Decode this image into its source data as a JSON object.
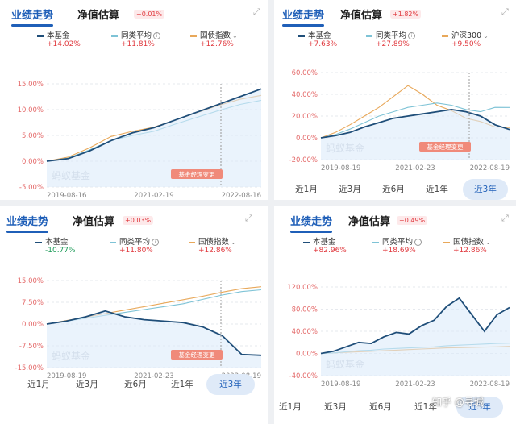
{
  "panels": [
    {
      "tabs": {
        "perf": "业绩走势",
        "nav": "净值估算",
        "badge": "+0.01%"
      },
      "legend": [
        {
          "name": "本基金",
          "value": "+14.02%",
          "color": "#1f4e79"
        },
        {
          "name": "同类平均",
          "value": "+11.81%",
          "color": "#7ec3d6",
          "info": true
        },
        {
          "name": "国债指数",
          "value": "+12.76%",
          "color": "#e8a85a",
          "chevron": true
        }
      ],
      "yticks": [
        "15.00%",
        "10.00%",
        "5.00%",
        "0.00%",
        "-5.00%"
      ],
      "xticks": [
        "2019-08-16",
        "2021-02-19",
        "2022-08-16"
      ],
      "watermark": "蚂蚁基金",
      "manager_tag": "基金经理变更",
      "chart_data": {
        "type": "line",
        "x_range": [
          "2019-08-16",
          "2022-08-16"
        ],
        "ylim": [
          -5,
          15
        ],
        "series": [
          {
            "name": "本基金",
            "values": [
              0,
              0.5,
              2,
              4,
              5.5,
              6.5,
              8,
              9.5,
              11,
              12.5,
              14.02
            ]
          },
          {
            "name": "同类平均",
            "values": [
              0,
              0.6,
              2.2,
              4,
              5,
              5.8,
              7.2,
              8.5,
              9.8,
              11,
              11.81
            ]
          },
          {
            "name": "国债指数",
            "values": [
              0,
              0.8,
              2.6,
              4.8,
              5.8,
              6.6,
              8,
              9.4,
              10.8,
              12,
              12.76
            ]
          }
        ]
      }
    },
    {
      "tabs": {
        "perf": "业绩走势",
        "nav": "净值估算",
        "badge": "+1.82%"
      },
      "legend": [
        {
          "name": "本基金",
          "value": "+7.63%",
          "color": "#1f4e79"
        },
        {
          "name": "同类平均",
          "value": "+27.89%",
          "color": "#7ec3d6",
          "info": true
        },
        {
          "name": "沪深300",
          "value": "+9.50%",
          "color": "#e8a85a",
          "chevron": true
        }
      ],
      "yticks": [
        "60.00%",
        "40.00%",
        "20.00%",
        "0.00%",
        "-20.00%"
      ],
      "xticks": [
        "2019-08-19",
        "2021-02-23",
        "2022-08-19"
      ],
      "watermark": "蚂蚁基金",
      "manager_tag": "基金经理变更",
      "periods": [
        "近1月",
        "近3月",
        "近6月",
        "近1年",
        "近3年"
      ],
      "active_period": "近3年",
      "chart_data": {
        "type": "line",
        "x_range": [
          "2019-08-19",
          "2022-08-19"
        ],
        "ylim": [
          -20,
          60
        ],
        "series": [
          {
            "name": "本基金",
            "values": [
              0,
              2,
              5,
              10,
              14,
              18,
              20,
              22,
              24,
              26,
              24,
              20,
              12,
              7.63
            ]
          },
          {
            "name": "同类平均",
            "values": [
              0,
              3,
              8,
              14,
              20,
              24,
              28,
              30,
              32,
              30,
              26,
              24,
              28,
              27.89
            ]
          },
          {
            "name": "沪深300",
            "values": [
              0,
              5,
              12,
              20,
              28,
              38,
              48,
              40,
              30,
              25,
              18,
              15,
              10,
              9.5
            ]
          }
        ]
      }
    },
    {
      "tabs": {
        "perf": "业绩走势",
        "nav": "净值估算",
        "badge": "+0.03%"
      },
      "legend": [
        {
          "name": "本基金",
          "value": "-10.77%",
          "color": "#1f4e79",
          "negative": true
        },
        {
          "name": "同类平均",
          "value": "+11.80%",
          "color": "#7ec3d6",
          "info": true
        },
        {
          "name": "国债指数",
          "value": "+12.86%",
          "color": "#e8a85a",
          "chevron": true
        }
      ],
      "yticks": [
        "15.00%",
        "7.50%",
        "0.00%",
        "-7.50%",
        "-15.00%"
      ],
      "xticks": [
        "2019-08-19",
        "2021-02-23",
        "2022-08-19"
      ],
      "watermark": "蚂蚁基金",
      "manager_tag": "基金经理变更",
      "periods": [
        "近1月",
        "近3月",
        "近6月",
        "近1年",
        "近3年"
      ],
      "active_period": "近3年",
      "chart_data": {
        "type": "line",
        "x_range": [
          "2019-08-19",
          "2022-08-19"
        ],
        "ylim": [
          -15,
          15
        ],
        "series": [
          {
            "name": "本基金",
            "values": [
              0,
              1,
              2.5,
              4.5,
              2.5,
              1.5,
              1,
              0.5,
              -1,
              -4,
              -10.5,
              -10.77
            ]
          },
          {
            "name": "同类平均",
            "values": [
              0,
              1,
              2,
              3,
              4,
              5,
              6,
              7,
              8.5,
              10,
              11.2,
              11.8
            ]
          },
          {
            "name": "国债指数",
            "values": [
              0,
              1.2,
              2.4,
              3.6,
              4.8,
              6,
              7.2,
              8.4,
              9.6,
              11,
              12.2,
              12.86
            ]
          }
        ]
      }
    },
    {
      "tabs": {
        "perf": "业绩走势",
        "nav": "净值估算",
        "badge": "+0.49%"
      },
      "legend": [
        {
          "name": "本基金",
          "value": "+82.96%",
          "color": "#1f4e79"
        },
        {
          "name": "同类平均",
          "value": "+18.69%",
          "color": "#7ec3d6",
          "info": true
        },
        {
          "name": "国债指数",
          "value": "+12.86%",
          "color": "#e8a85a",
          "chevron": true
        }
      ],
      "yticks": [
        "120.00%",
        "80.00%",
        "40.00%",
        "0.00%",
        "-40.00%"
      ],
      "xticks": [
        "2019-08-19",
        "2021-02-23",
        "2022-08-19"
      ],
      "watermark": "蚂蚁基金",
      "periods": [
        "近1月",
        "近3月",
        "近6月",
        "近1年",
        "近3年"
      ],
      "active_period": "近3年",
      "chart_data": {
        "type": "line",
        "x_range": [
          "2019-08-19",
          "2022-08-19"
        ],
        "ylim": [
          -40,
          120
        ],
        "series": [
          {
            "name": "本基金",
            "values": [
              0,
              4,
              12,
              20,
              18,
              30,
              38,
              35,
              50,
              60,
              85,
              100,
              70,
              40,
              70,
              82.96
            ]
          },
          {
            "name": "同类平均",
            "values": [
              0,
              1,
              3,
              5,
              6,
              8,
              9,
              10,
              11,
              12,
              14,
              15,
              16,
              17,
              18,
              18.69
            ]
          },
          {
            "name": "国债指数",
            "values": [
              0,
              1,
              2,
              3,
              4,
              5,
              6,
              7,
              8,
              9,
              10,
              10.5,
              11,
              11.5,
              12,
              12.86
            ]
          }
        ]
      }
    }
  ],
  "watermark_site": "知乎 @寻城"
}
